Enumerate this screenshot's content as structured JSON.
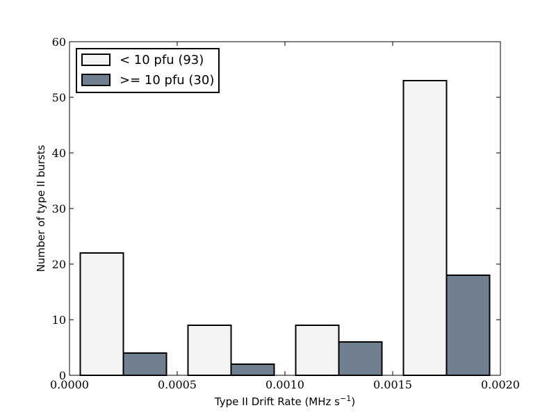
{
  "chart_data": {
    "type": "bar",
    "xlabel": "Type II Drift Rate (MHz s",
    "xlabel_sup": "−1",
    "xlabel_close": ")",
    "ylabel": "Number of type II bursts",
    "xlim": [
      0.0,
      0.002
    ],
    "ylim": [
      0,
      60
    ],
    "x_ticks": [
      "0.0000",
      "0.0005",
      "0.0010",
      "0.0015",
      "0.0020"
    ],
    "y_ticks": [
      "0",
      "10",
      "20",
      "30",
      "40",
      "50",
      "60"
    ],
    "bin_edges": [
      0.0,
      0.0005,
      0.001,
      0.0015,
      0.002
    ],
    "series": [
      {
        "name": "< 10 pfu (93)",
        "values": [
          22,
          9,
          9,
          53
        ],
        "color": "#f3f3f3"
      },
      {
        "name": ">= 10 pfu (30)",
        "values": [
          4,
          2,
          6,
          18
        ],
        "color": "#708090"
      }
    ],
    "legend_position": "upper left",
    "grid": false
  }
}
